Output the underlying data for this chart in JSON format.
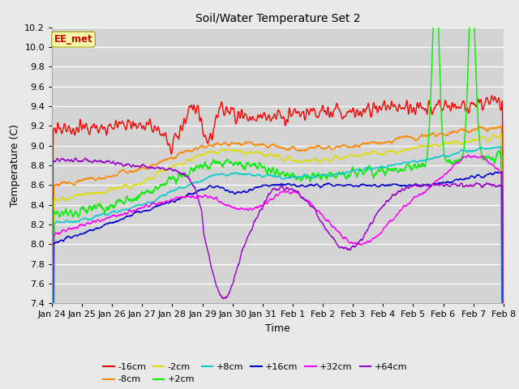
{
  "title": "Soil/Water Temperature Set 2",
  "xlabel": "Time",
  "ylabel": "Temperature (C)",
  "ylim": [
    7.4,
    10.2
  ],
  "fig_bg": "#e8e8e8",
  "plot_bg": "#d4d4d4",
  "x_labels": [
    "Jan 24",
    "Jan 25",
    "Jan 26",
    "Jan 27",
    "Jan 28",
    "Jan 29",
    "Jan 30",
    "Jan 31",
    "Feb 1",
    "Feb 2",
    "Feb 3",
    "Feb 4",
    "Feb 5",
    "Feb 6",
    "Feb 7",
    "Feb 8"
  ],
  "colors": {
    "-16cm": "#ff0000",
    "-8cm": "#ff8800",
    "-2cm": "#dddd00",
    "+2cm": "#00ee00",
    "+8cm": "#00cccc",
    "+16cm": "#0000cc",
    "+32cm": "#ff00ff",
    "+64cm": "#9900cc"
  },
  "watermark": "EE_met",
  "watermark_color": "#cc0000",
  "watermark_bg": "#ffffaa",
  "watermark_edge": "#999900"
}
